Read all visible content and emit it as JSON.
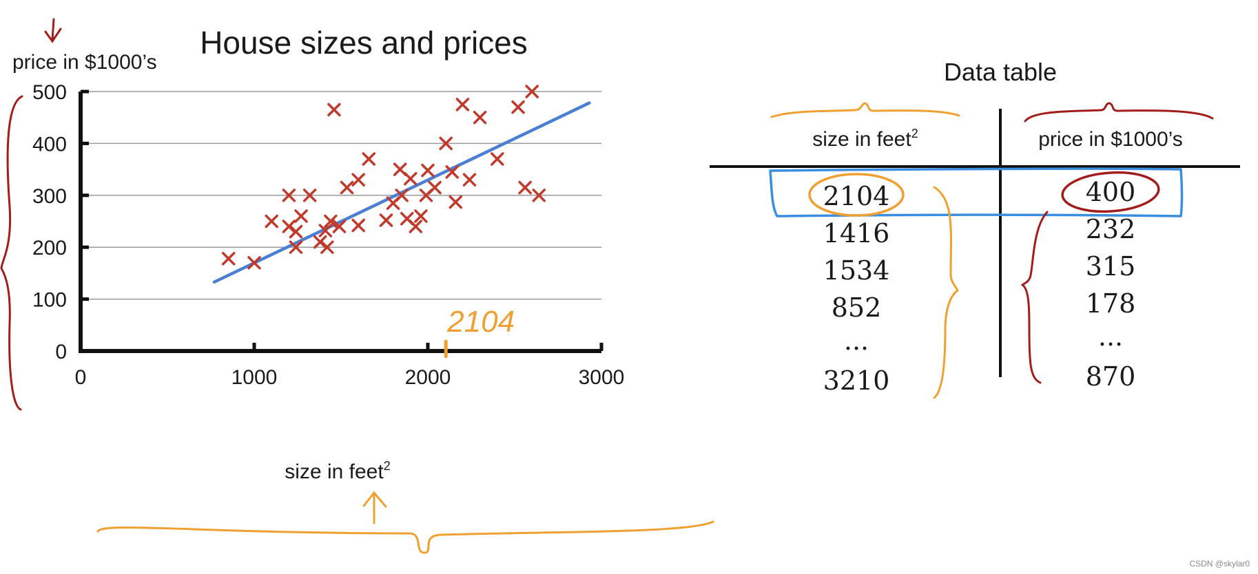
{
  "chart_data": {
    "type": "scatter",
    "title": "House sizes and prices",
    "xlabel_text": "size in feet",
    "xlabel_sup": "2",
    "ylabel": "price in $1000’s",
    "xlim": [
      0,
      3000
    ],
    "ylim": [
      0,
      500
    ],
    "xticks": [
      "0",
      "1000",
      "2000",
      "3000"
    ],
    "yticks": [
      "0",
      "100",
      "200",
      "300",
      "400",
      "500"
    ],
    "grid": true,
    "points": [
      [
        852,
        178
      ],
      [
        1000,
        170
      ],
      [
        1100,
        250
      ],
      [
        1200,
        300
      ],
      [
        1200,
        240
      ],
      [
        1240,
        230
      ],
      [
        1240,
        200
      ],
      [
        1270,
        260
      ],
      [
        1320,
        300
      ],
      [
        1380,
        210
      ],
      [
        1410,
        232
      ],
      [
        1420,
        200
      ],
      [
        1440,
        250
      ],
      [
        1460,
        465
      ],
      [
        1490,
        240
      ],
      [
        1534,
        315
      ],
      [
        1600,
        330
      ],
      [
        1600,
        242
      ],
      [
        1660,
        370
      ],
      [
        1760,
        252
      ],
      [
        1800,
        285
      ],
      [
        1840,
        350
      ],
      [
        1850,
        300
      ],
      [
        1880,
        255
      ],
      [
        1900,
        332
      ],
      [
        1930,
        240
      ],
      [
        1960,
        260
      ],
      [
        1990,
        300
      ],
      [
        2000,
        348
      ],
      [
        2040,
        315
      ],
      [
        2104,
        400
      ],
      [
        2140,
        345
      ],
      [
        2160,
        287
      ],
      [
        2200,
        475
      ],
      [
        2240,
        330
      ],
      [
        2300,
        450
      ],
      [
        2400,
        370
      ],
      [
        2520,
        470
      ],
      [
        2560,
        315
      ],
      [
        2600,
        500
      ],
      [
        2640,
        300
      ]
    ],
    "fit_line": [
      [
        770,
        133
      ],
      [
        2930,
        478
      ]
    ],
    "annotation": "2104",
    "annotation_x": 2104,
    "colors": {
      "points": "#c0392b",
      "fit": "#4a7fd4",
      "accent_orange": "#f0a030",
      "accent_red": "#a31c1c",
      "grid": "#999999"
    }
  },
  "table": {
    "title": "Data table",
    "col1_header": "size in feet",
    "col1_sup": "2",
    "col2_header": "price in $1000’s",
    "rows": [
      [
        "2104",
        "400"
      ],
      [
        "1416",
        "232"
      ],
      [
        "1534",
        "315"
      ],
      [
        "852",
        "178"
      ],
      [
        "...",
        "..."
      ],
      [
        "3210",
        "870"
      ]
    ],
    "highlight_color": "#3a8ee0"
  },
  "watermark": "CSDN @skylar0"
}
